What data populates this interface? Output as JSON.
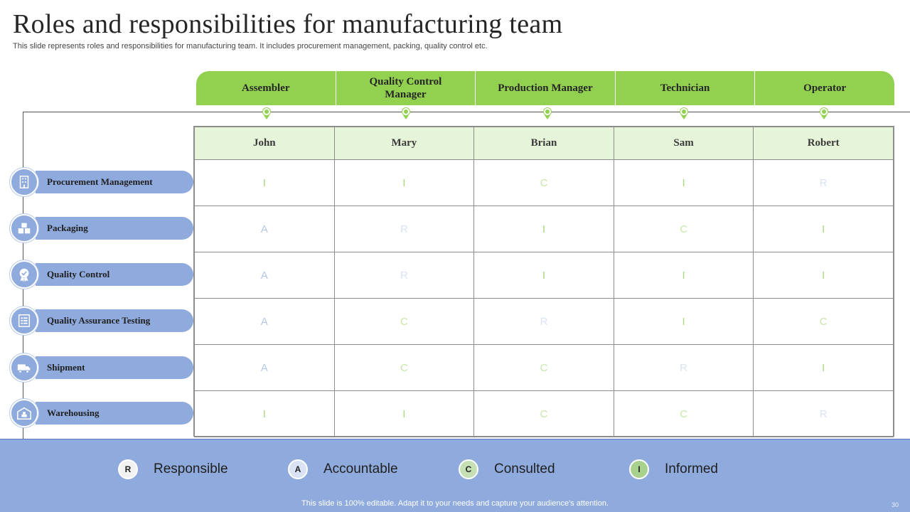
{
  "title": "Roles and responsibilities for manufacturing team",
  "subtitle": "This slide represents roles and responsibilities for manufacturing team. It includes procurement management, packing, quality control etc.",
  "roles": [
    "Assembler",
    "Quality Control Manager",
    "Production Manager",
    "Technician",
    "Operator"
  ],
  "people": [
    "John",
    "Mary",
    "Brian",
    "Sam",
    "Robert"
  ],
  "tasks": [
    {
      "label": "Procurement Management",
      "icon": "building-icon",
      "codes": [
        "I",
        "I",
        "C",
        "I",
        "R"
      ]
    },
    {
      "label": "Packaging",
      "icon": "boxes-icon",
      "codes": [
        "A",
        "R",
        "I",
        "C",
        "I"
      ]
    },
    {
      "label": "Quality Control",
      "icon": "quality-badge-icon",
      "codes": [
        "A",
        "R",
        "I",
        "I",
        "I"
      ]
    },
    {
      "label": "Quality Assurance Testing",
      "icon": "checklist-icon",
      "codes": [
        "A",
        "C",
        "R",
        "I",
        "C"
      ]
    },
    {
      "label": "Shipment",
      "icon": "truck-icon",
      "codes": [
        "A",
        "C",
        "C",
        "R",
        "I"
      ]
    },
    {
      "label": "Warehousing",
      "icon": "warehouse-icon",
      "codes": [
        "I",
        "I",
        "C",
        "C",
        "R"
      ]
    }
  ],
  "legend": [
    {
      "code": "R",
      "label": "Responsible",
      "color": "#f2f2f2"
    },
    {
      "code": "A",
      "label": "Accountable",
      "color": "#dae3f3"
    },
    {
      "code": "C",
      "label": "Consulted",
      "color": "#c5e0b4"
    },
    {
      "code": "I",
      "label": "Informed",
      "color": "#a9d18e"
    }
  ],
  "colors": {
    "header_green": "#92d050",
    "people_row": "#e6f4d9",
    "task_blue": "#8faadc"
  },
  "footer": "This slide is 100% editable. Adapt it to your needs and capture your audience's attention.",
  "page_number": "30"
}
